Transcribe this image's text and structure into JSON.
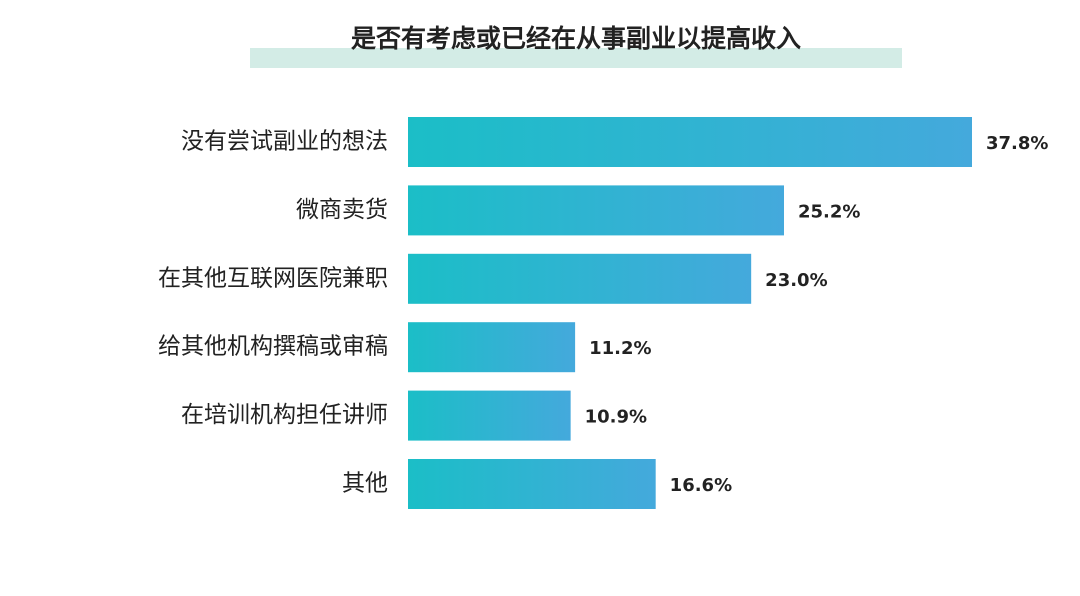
{
  "chart_data": {
    "type": "bar",
    "orientation": "horizontal",
    "title": "是否有考虑或已经在从事副业以提高收入",
    "categories": [
      "没有尝试副业的想法",
      "微商卖货",
      "在其他互联网医院兼职",
      "给其他机构撰稿或审稿",
      "在培训机构担任讲师",
      "其他"
    ],
    "values": [
      37.8,
      25.2,
      23.0,
      11.2,
      10.9,
      16.6
    ],
    "value_labels": [
      "37.8%",
      "25.2%",
      "23.0%",
      "11.2%",
      "10.9%",
      "16.6%"
    ],
    "colors": [
      "#1bbec7",
      "#44a9dc"
    ]
  }
}
